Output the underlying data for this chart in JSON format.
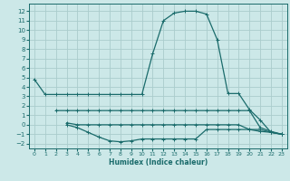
{
  "xlabel": "Humidex (Indice chaleur)",
  "bg_color": "#cce8e8",
  "grid_color": "#aacccc",
  "line_color": "#1a6b6b",
  "xlim": [
    -0.5,
    23.5
  ],
  "ylim": [
    -2.5,
    12.8
  ],
  "yticks": [
    -2,
    -1,
    0,
    1,
    2,
    3,
    4,
    5,
    6,
    7,
    8,
    9,
    10,
    11,
    12
  ],
  "xticks": [
    0,
    1,
    2,
    3,
    4,
    5,
    6,
    7,
    8,
    9,
    10,
    11,
    12,
    13,
    14,
    15,
    16,
    17,
    18,
    19,
    20,
    21,
    22,
    23
  ],
  "lines": [
    {
      "x": [
        0,
        1,
        2,
        3,
        4,
        5,
        6,
        7,
        8,
        9,
        10,
        11,
        12,
        13,
        14,
        15,
        16,
        17,
        18,
        19,
        20,
        21,
        22,
        23
      ],
      "y": [
        4.8,
        3.2,
        3.2,
        3.2,
        3.2,
        3.2,
        3.2,
        3.2,
        3.2,
        3.2,
        3.2,
        7.5,
        11.0,
        11.8,
        12.0,
        12.0,
        11.7,
        9.0,
        3.3,
        3.3,
        1.6,
        0.5,
        -0.8,
        -1.0
      ]
    },
    {
      "x": [
        2,
        3,
        4,
        5,
        6,
        7,
        8,
        9,
        10,
        11,
        12,
        13,
        14,
        15,
        16,
        17,
        18,
        19,
        20,
        21,
        22,
        23
      ],
      "y": [
        1.5,
        1.5,
        1.5,
        1.5,
        1.5,
        1.5,
        1.5,
        1.5,
        1.5,
        1.5,
        1.5,
        1.5,
        1.5,
        1.5,
        1.5,
        1.5,
        1.5,
        1.5,
        1.5,
        -0.3,
        -0.7,
        -1.0
      ]
    },
    {
      "x": [
        3,
        4,
        5,
        6,
        7,
        8,
        9,
        10,
        11,
        12,
        13,
        14,
        15,
        16,
        17,
        18,
        19,
        20,
        21,
        22,
        23
      ],
      "y": [
        0.0,
        -0.3,
        -0.8,
        -1.3,
        -1.7,
        -1.8,
        -1.7,
        -1.5,
        -1.5,
        -1.5,
        -1.5,
        -1.5,
        -1.5,
        -0.5,
        -0.5,
        -0.5,
        -0.5,
        -0.5,
        -0.7,
        -0.8,
        -1.0
      ]
    },
    {
      "x": [
        3,
        4,
        5,
        6,
        7,
        8,
        9,
        10,
        11,
        12,
        13,
        14,
        15,
        16,
        17,
        18,
        19,
        20,
        21,
        22,
        23
      ],
      "y": [
        0.2,
        0.0,
        0.0,
        0.0,
        0.0,
        0.0,
        0.0,
        0.0,
        0.0,
        0.0,
        0.0,
        0.0,
        0.0,
        0.0,
        0.0,
        0.0,
        0.0,
        -0.5,
        -0.5,
        -0.8,
        -1.0
      ]
    }
  ]
}
